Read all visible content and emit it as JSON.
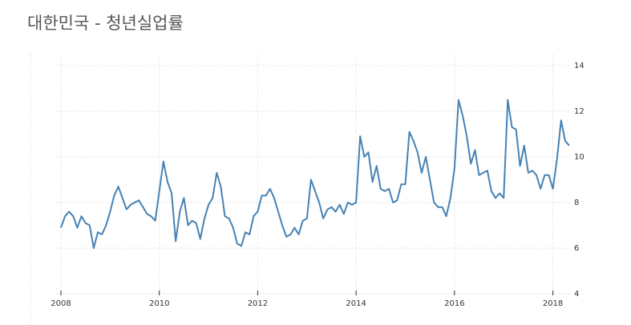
{
  "chart_data": {
    "type": "line",
    "title": "대한민국 - 청년실업률",
    "x": [
      2008,
      2008.083,
      2008.167,
      2008.25,
      2008.333,
      2008.417,
      2008.5,
      2008.583,
      2008.667,
      2008.75,
      2008.833,
      2008.917,
      2009,
      2009.083,
      2009.167,
      2009.25,
      2009.333,
      2009.417,
      2009.5,
      2009.583,
      2009.667,
      2009.75,
      2009.833,
      2009.917,
      2010,
      2010.083,
      2010.167,
      2010.25,
      2010.333,
      2010.417,
      2010.5,
      2010.583,
      2010.667,
      2010.75,
      2010.833,
      2010.917,
      2011,
      2011.083,
      2011.167,
      2011.25,
      2011.333,
      2011.417,
      2011.5,
      2011.583,
      2011.667,
      2011.75,
      2011.833,
      2011.917,
      2012,
      2012.083,
      2012.167,
      2012.25,
      2012.333,
      2012.417,
      2012.5,
      2012.583,
      2012.667,
      2012.75,
      2012.833,
      2012.917,
      2013,
      2013.083,
      2013.167,
      2013.25,
      2013.333,
      2013.417,
      2013.5,
      2013.583,
      2013.667,
      2013.75,
      2013.833,
      2013.917,
      2014,
      2014.083,
      2014.167,
      2014.25,
      2014.333,
      2014.417,
      2014.5,
      2014.583,
      2014.667,
      2014.75,
      2014.833,
      2014.917,
      2015,
      2015.083,
      2015.167,
      2015.25,
      2015.333,
      2015.417,
      2015.5,
      2015.583,
      2015.667,
      2015.75,
      2015.833,
      2015.917,
      2016,
      2016.083,
      2016.167,
      2016.25,
      2016.333,
      2016.417,
      2016.5,
      2016.583,
      2016.667,
      2016.75,
      2016.833,
      2016.917,
      2017,
      2017.083,
      2017.167,
      2017.25,
      2017.333,
      2017.417,
      2017.5,
      2017.583,
      2017.667,
      2017.75,
      2017.833,
      2017.917,
      2018,
      2018.083,
      2018.167,
      2018.25,
      2018.333
    ],
    "series": [
      {
        "color": "#4682b4",
        "values": [
          6.9,
          7.4,
          7.6,
          7.4,
          6.9,
          7.4,
          7.1,
          7.0,
          6.0,
          6.7,
          6.6,
          7.0,
          7.6,
          8.3,
          8.7,
          8.2,
          7.7,
          7.9,
          8.0,
          8.1,
          7.8,
          7.5,
          7.4,
          7.2,
          8.5,
          9.8,
          8.9,
          8.4,
          6.3,
          7.6,
          8.2,
          7.0,
          7.2,
          7.1,
          6.4,
          7.3,
          7.9,
          8.2,
          9.3,
          8.7,
          7.4,
          7.3,
          6.9,
          6.2,
          6.1,
          6.7,
          6.6,
          7.4,
          7.6,
          8.3,
          8.3,
          8.6,
          8.2,
          7.6,
          7.0,
          6.5,
          6.6,
          6.9,
          6.6,
          7.2,
          7.3,
          9.0,
          8.5,
          8.0,
          7.3,
          7.7,
          7.8,
          7.6,
          7.9,
          7.5,
          8.0,
          7.9,
          8.0,
          10.9,
          10.0,
          10.2,
          8.9,
          9.6,
          8.6,
          8.5,
          8.6,
          8.0,
          8.1,
          8.8,
          8.8,
          11.1,
          10.7,
          10.2,
          9.3,
          10.0,
          9.0,
          8.0,
          7.8,
          7.8,
          7.4,
          8.2,
          9.5,
          12.5,
          11.8,
          10.9,
          9.7,
          10.3,
          9.2,
          9.3,
          9.4,
          8.5,
          8.2,
          8.4,
          8.2,
          12.5,
          11.3,
          11.2,
          9.6,
          10.5,
          9.3,
          9.4,
          9.2,
          8.6,
          9.2,
          9.2,
          8.6,
          9.9,
          11.6,
          10.7,
          10.5
        ]
      }
    ],
    "xlim": [
      2008,
      2018.333
    ],
    "xticks": [
      2008,
      2010,
      2012,
      2014,
      2016,
      2018
    ],
    "ylim": [
      4,
      14
    ],
    "yticks": [
      4,
      6,
      8,
      10,
      12,
      14
    ],
    "grid": true
  }
}
